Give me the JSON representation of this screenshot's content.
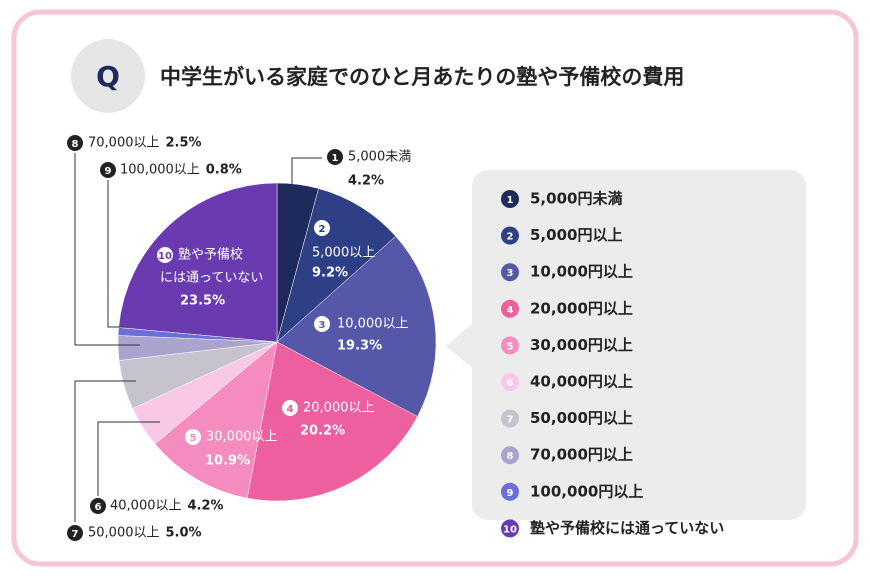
{
  "chart_data": {
    "type": "pie",
    "badge": "Q",
    "title": "中学生がいる家庭でのひと月あたりの塾や予備校の費用",
    "markers": [
      "1",
      "2",
      "3",
      "4",
      "5",
      "6",
      "7",
      "8",
      "9",
      "10"
    ],
    "slice_labels": [
      [
        "5,000未満"
      ],
      [
        "5,000以上"
      ],
      [
        "10,000以上"
      ],
      [
        "20,000以上"
      ],
      [
        "30,000以上"
      ],
      [
        "40,000以上"
      ],
      [
        "50,000以上"
      ],
      [
        "70,000以上"
      ],
      [
        "100,000以上"
      ],
      [
        "塾や予備校",
        "には通っていない"
      ]
    ],
    "categories": [
      "5,000円未満",
      "5,000円以上",
      "10,000円以上",
      "20,000円以上",
      "30,000円以上",
      "40,000円以上",
      "50,000円以上",
      "70,000円以上",
      "100,000円以上",
      "塾や予備校には通っていない"
    ],
    "values": [
      4.2,
      9.2,
      19.3,
      20.2,
      10.9,
      4.2,
      5.0,
      2.5,
      0.8,
      23.5
    ],
    "value_labels": [
      "4.2%",
      "9.2%",
      "19.3%",
      "20.2%",
      "10.9%",
      "4.2%",
      "5.0%",
      "2.5%",
      "0.8%",
      "23.5%"
    ],
    "colors": [
      "#1f2a5c",
      "#2f3f86",
      "#5558a8",
      "#ee5fa0",
      "#f48cbf",
      "#f8c8e6",
      "#c6c3cf",
      "#aaa3cd",
      "#6b6fd6",
      "#6a3ab0"
    ]
  }
}
